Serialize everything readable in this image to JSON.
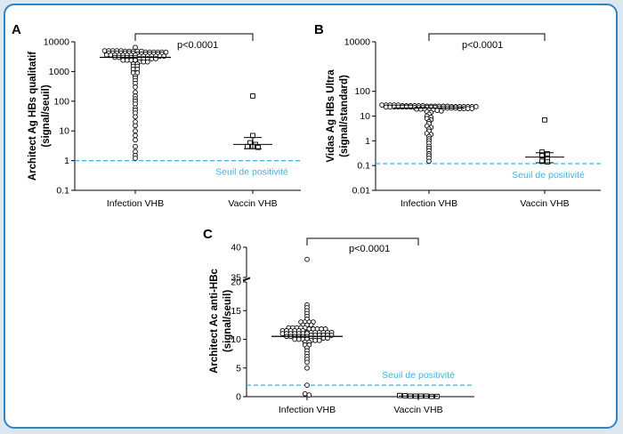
{
  "panels": [
    {
      "letter": "A",
      "ylabel_lines": [
        "Architect Ag HBs qualitatif",
        "(signal/seuil)"
      ],
      "ticks": [
        "0.1",
        "1",
        "10",
        "100",
        "1000",
        "10000"
      ],
      "categories": [
        "Infection VHB",
        "Vaccin VHB"
      ],
      "pvalue": "p<0.0001",
      "threshold_label": "Seuil de positivité"
    },
    {
      "letter": "B",
      "ylabel_lines": [
        "Vidas Ag HBs Ultra",
        "(signal/standard)"
      ],
      "ticks": [
        "0.01",
        "0.1",
        "1",
        "10",
        "100",
        "10000"
      ],
      "categories": [
        "Infection VHB",
        "Vaccin VHB"
      ],
      "pvalue": "p<0.0001",
      "threshold_label": "Seuil de positivité"
    },
    {
      "letter": "C",
      "ylabel_lines": [
        "Architect Ac anti-HBc",
        "(signal/seuil)"
      ],
      "ticks": [
        "0",
        "5",
        "10",
        "15",
        "20",
        "35",
        "40"
      ],
      "categories": [
        "Infection VHB",
        "Vaccin VHB"
      ],
      "pvalue": "p<0.0001",
      "threshold_label": "Seuil de positivité"
    }
  ],
  "colors": {
    "frame": "#2a84c6",
    "background": "#dde7ef",
    "threshold": "#3cb4dc",
    "ink": "#000000"
  },
  "chart_data": [
    {
      "type": "scatter",
      "panel": "A",
      "yscale": "log",
      "ylim": [
        0.1,
        10000
      ],
      "threshold": 1,
      "categories": [
        "Infection VHB",
        "Vaccin VHB"
      ],
      "groups": [
        {
          "category": "Infection VHB",
          "marker": "circle",
          "values": [
            5000,
            5000,
            5000,
            5000,
            5000,
            4800,
            4800,
            4800,
            4800,
            4800,
            4500,
            4500,
            4500,
            4500,
            4500,
            4500,
            4200,
            4200,
            4200,
            4200,
            4200,
            4200,
            4200,
            3900,
            3900,
            3900,
            3900,
            3900,
            3900,
            3900,
            3600,
            3600,
            3600,
            3600,
            3600,
            3600,
            3600,
            3600,
            3300,
            3300,
            3300,
            3300,
            3300,
            3300,
            3300,
            3000,
            3000,
            3000,
            3000,
            3000,
            3000,
            2700,
            2700,
            2700,
            2700,
            2700,
            2400,
            2400,
            2400,
            2400,
            2100,
            2100,
            2100,
            1800,
            1800,
            1500,
            1500,
            1200,
            1200,
            900,
            900,
            700,
            600,
            500,
            400,
            300,
            200,
            150,
            120,
            100,
            80,
            60,
            50,
            40,
            30,
            20,
            15,
            10,
            7,
            5,
            3,
            2,
            1.5,
            1.2,
            6500
          ],
          "median": 3000
        },
        {
          "category": "Vaccin VHB",
          "marker": "square",
          "values": [
            150,
            7,
            4,
            3.5,
            3,
            3,
            2.8
          ],
          "mean": 3.5,
          "error": [
            2.5,
            6
          ]
        }
      ],
      "annotation": "p<0.0001",
      "threshold_label": "Seuil de positivité"
    },
    {
      "type": "scatter",
      "panel": "B",
      "yscale": "log",
      "ylim": [
        0.01,
        10000
      ],
      "threshold": 0.12,
      "categories": [
        "Infection VHB",
        "Vaccin VHB"
      ],
      "groups": [
        {
          "category": "Infection VHB",
          "marker": "circle",
          "values": [
            28,
            28,
            28,
            28,
            28,
            26,
            26,
            26,
            26,
            26,
            26,
            25,
            25,
            25,
            25,
            25,
            25,
            24,
            24,
            24,
            24,
            24,
            24,
            24,
            23,
            23,
            23,
            23,
            23,
            23,
            23,
            22,
            22,
            22,
            22,
            22,
            22,
            21,
            21,
            21,
            21,
            21,
            20,
            20,
            20,
            20,
            19,
            19,
            19,
            18,
            18,
            17,
            16,
            15,
            14,
            12,
            10,
            9,
            8,
            7,
            6,
            5,
            4,
            3.5,
            3,
            2.5,
            2,
            1.8,
            1.5,
            1.2,
            1,
            0.8,
            0.6,
            0.5,
            0.4,
            0.3,
            0.25,
            0.2,
            0.15
          ],
          "median": 21
        },
        {
          "category": "Vaccin VHB",
          "marker": "square",
          "values": [
            7,
            0.35,
            0.3,
            0.25,
            0.2,
            0.15,
            0.14
          ],
          "mean": 0.22,
          "error": [
            0.13,
            0.33
          ]
        }
      ],
      "annotation": "p<0.0001",
      "threshold_label": "Seuil de positivité"
    },
    {
      "type": "scatter",
      "panel": "C",
      "yscale": "broken-linear",
      "ylim": [
        0,
        40
      ],
      "axis_break": [
        20,
        35
      ],
      "threshold": 2,
      "categories": [
        "Infection VHB",
        "Vaccin VHB"
      ],
      "groups": [
        {
          "category": "Infection VHB",
          "marker": "circle",
          "values": [
            12,
            12,
            12,
            12,
            12,
            11.8,
            11.8,
            11.8,
            11.8,
            11.8,
            11.5,
            11.5,
            11.5,
            11.5,
            11.5,
            11.5,
            11.2,
            11.2,
            11.2,
            11.2,
            11.2,
            11.2,
            11.2,
            11,
            11,
            11,
            11,
            11,
            11,
            11,
            10.7,
            10.7,
            10.7,
            10.7,
            10.7,
            10.7,
            10.5,
            10.5,
            10.5,
            10.5,
            10.5,
            10.5,
            10.2,
            10.2,
            10.2,
            10.2,
            10.2,
            10,
            10,
            10,
            10,
            9.8,
            9.8,
            9.8,
            9.5,
            9.5,
            9,
            9,
            8.5,
            8,
            7.5,
            7,
            6.5,
            6,
            5,
            2,
            0.5,
            0.3,
            38,
            16,
            15.5,
            15,
            14.5,
            14,
            13.5,
            13,
            13,
            13,
            13,
            12.5,
            12.5,
            12.5
          ],
          "median": 10.5
        },
        {
          "category": "Vaccin VHB",
          "marker": "square",
          "values": [
            0.2,
            0.15,
            0.1,
            0.1,
            0.1,
            0.1,
            0.05,
            0.05
          ],
          "mean": 0.1
        }
      ],
      "annotation": "p<0.0001",
      "threshold_label": "Seuil de positivité"
    }
  ]
}
